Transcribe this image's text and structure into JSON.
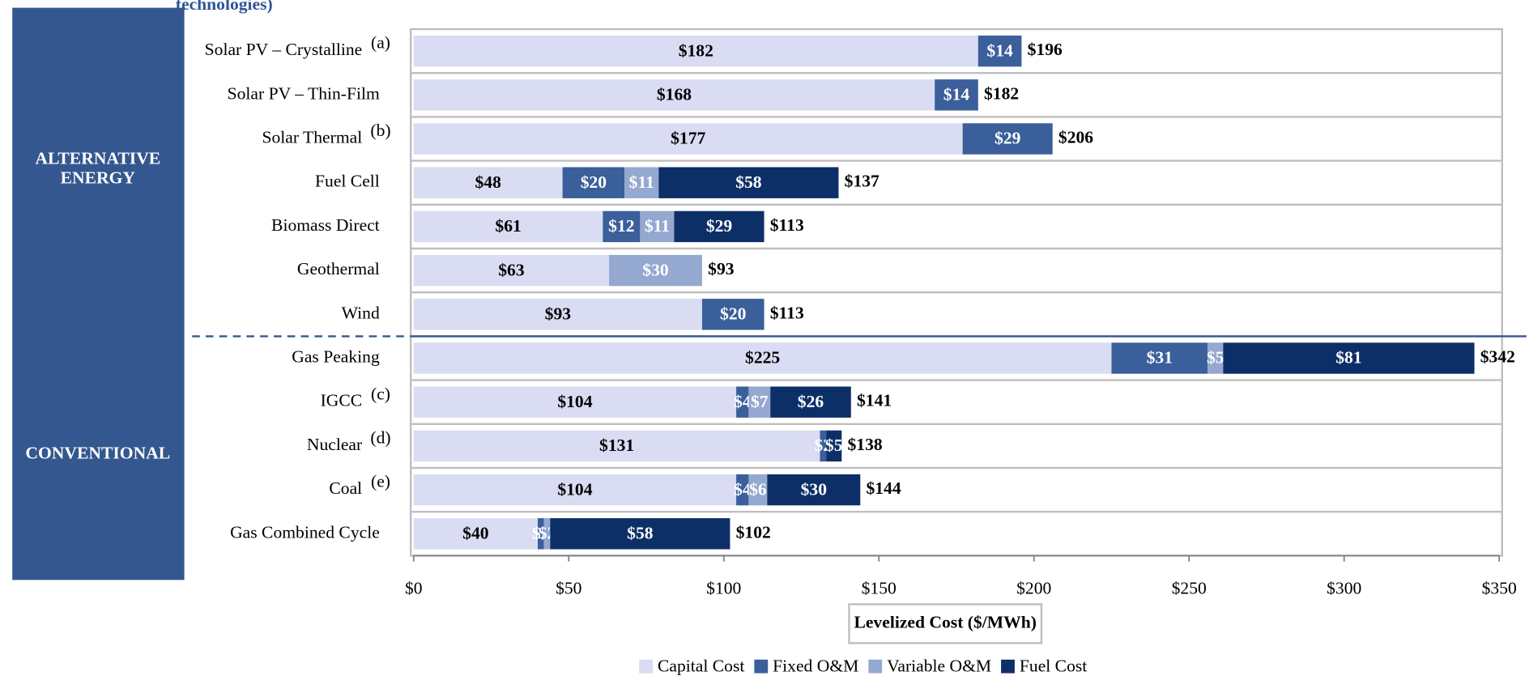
{
  "chart_data": {
    "type": "stacked-barh",
    "title": "technologies)",
    "groups": [
      {
        "label": "ALTERNATIVE ENERGY",
        "first": 0,
        "last": 6
      },
      {
        "label": "CONVENTIONAL",
        "first": 7,
        "last": 11
      }
    ],
    "categories": [
      "Solar PV – Crystalline",
      "Solar PV – Thin-Film",
      "Solar Thermal",
      "Fuel Cell",
      "Biomass Direct",
      "Geothermal",
      "Wind",
      "Gas Peaking",
      "IGCC",
      "Nuclear",
      "Coal",
      "Gas Combined Cycle"
    ],
    "category_notes": [
      "(a)",
      null,
      "(b)",
      null,
      null,
      null,
      null,
      null,
      "(c)",
      "(d)",
      "(e)",
      null
    ],
    "series": [
      {
        "name": "Capital Cost",
        "color": "#d9dcf2",
        "label_color": "#000000",
        "values": [
          182,
          168,
          177,
          48,
          61,
          63,
          93,
          225,
          104,
          131,
          104,
          40
        ],
        "value_labels": [
          "$182",
          "$168",
          "$177",
          "$48",
          "$61",
          "$63",
          "$93",
          "$225",
          "$104",
          "$131",
          "$104",
          "$40"
        ]
      },
      {
        "name": "Fixed O&M",
        "color": "#3a5f9b",
        "label_color": "#ffffff",
        "values": [
          14,
          14,
          29,
          20,
          12,
          null,
          20,
          31,
          4,
          2,
          4,
          2
        ],
        "value_labels": [
          "$14",
          "$14",
          "$29",
          "$20",
          "$12",
          null,
          "$20",
          "$31",
          "$4",
          "$2",
          "$4",
          "$2"
        ]
      },
      {
        "name": "Variable O&M",
        "color": "#94a8d0",
        "label_color": "#ffffff",
        "values": [
          null,
          null,
          null,
          11,
          11,
          30,
          null,
          5,
          7,
          null,
          6,
          2
        ],
        "value_labels": [
          null,
          null,
          null,
          "$11",
          "$11",
          "$30",
          null,
          "$5",
          "$7",
          null,
          "$6",
          "$2"
        ]
      },
      {
        "name": "Fuel Cost",
        "color": "#0d2f68",
        "label_color": "#ffffff",
        "values": [
          null,
          null,
          null,
          58,
          29,
          null,
          null,
          81,
          26,
          5,
          30,
          58
        ],
        "value_labels": [
          null,
          null,
          null,
          "$58",
          "$29",
          null,
          null,
          "$81",
          "$26",
          "$5",
          "$30",
          "$58"
        ]
      }
    ],
    "totals": [
      196,
      182,
      206,
      137,
      113,
      93,
      113,
      342,
      141,
      138,
      144,
      102
    ],
    "total_labels": [
      "$196",
      "$182",
      "$206",
      "$137",
      "$113",
      "$93",
      "$113",
      "$342",
      "$141",
      "$138",
      "$144",
      "$102"
    ],
    "xlabel": "Levelized Cost ($/MWh)",
    "xlim": [
      0,
      350
    ],
    "xticks": [
      {
        "value": 0,
        "label": "$0"
      },
      {
        "value": 50,
        "label": "$50"
      },
      {
        "value": 100,
        "label": "$100"
      },
      {
        "value": 150,
        "label": "$150"
      },
      {
        "value": 200,
        "label": "$200"
      },
      {
        "value": 250,
        "label": "$250"
      },
      {
        "value": 300,
        "label": "$300"
      },
      {
        "value": 350,
        "label": "$350"
      }
    ],
    "grid": false,
    "legend": "bottom"
  }
}
